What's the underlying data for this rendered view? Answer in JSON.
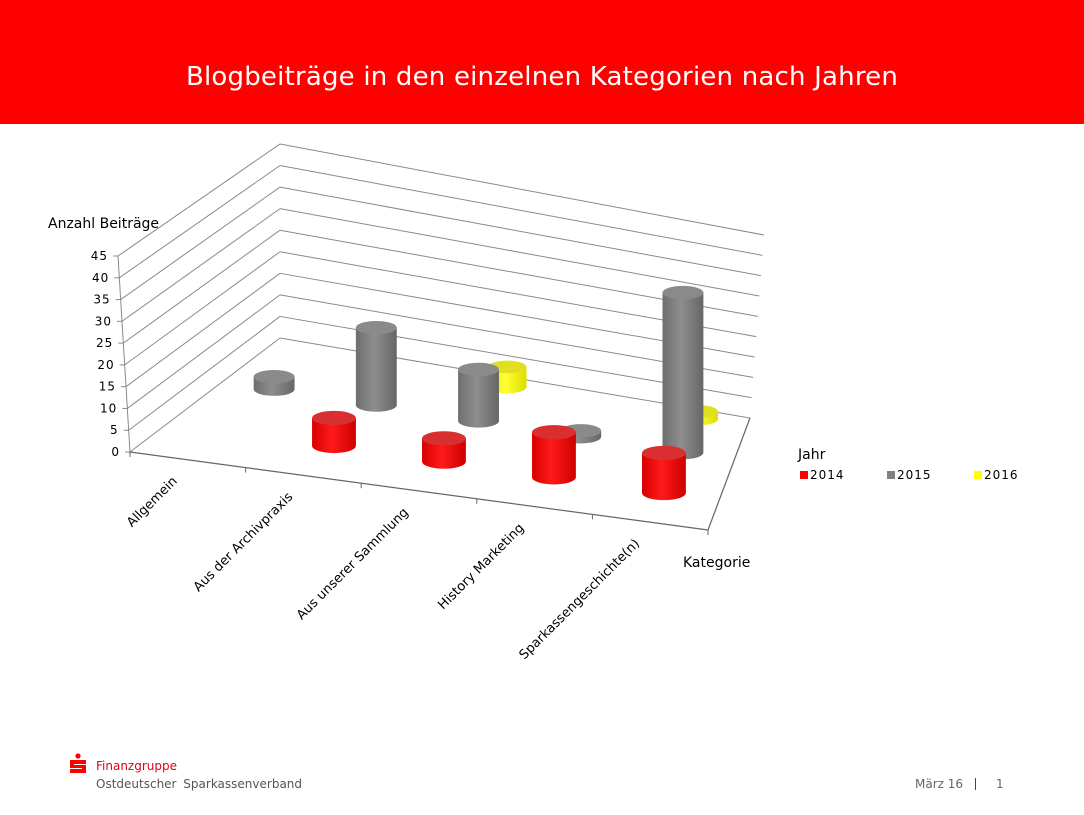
{
  "header": {
    "title": "Blogbeiträge in den einzelnen Kategorien nach Jahren"
  },
  "chart_data": {
    "type": "bar",
    "variant": "3d-cylinder",
    "title": "Blogbeiträge in den einzelnen Kategorien nach Jahren",
    "xlabel": "Kategorie",
    "ylabel": "Anzahl Beiträge",
    "ylim": [
      0,
      45
    ],
    "yticks": [
      0,
      5,
      10,
      15,
      20,
      25,
      30,
      35,
      40,
      45
    ],
    "grid": true,
    "categories": [
      "Allgemein",
      "Aus der Archivpraxis",
      "Aus unserer Sammlung",
      "History Marketing",
      "Sparkassengeschichte(n)"
    ],
    "legend": {
      "title": "Jahr",
      "placement": "right"
    },
    "series": [
      {
        "name": "2014",
        "color": "#ff0000",
        "values": [
          0,
          7,
          6,
          12,
          11
        ]
      },
      {
        "name": "2015",
        "color": "#808080",
        "values": [
          3,
          19,
          13,
          1,
          43
        ]
      },
      {
        "name": "2016",
        "color": "#ffff00",
        "values": [
          0,
          0,
          5,
          0,
          2
        ]
      }
    ]
  },
  "footer": {
    "brand": "Finanzgruppe",
    "organization": "Ostdeutscher Sparkassenverband",
    "date": "März 16",
    "page": "1"
  }
}
